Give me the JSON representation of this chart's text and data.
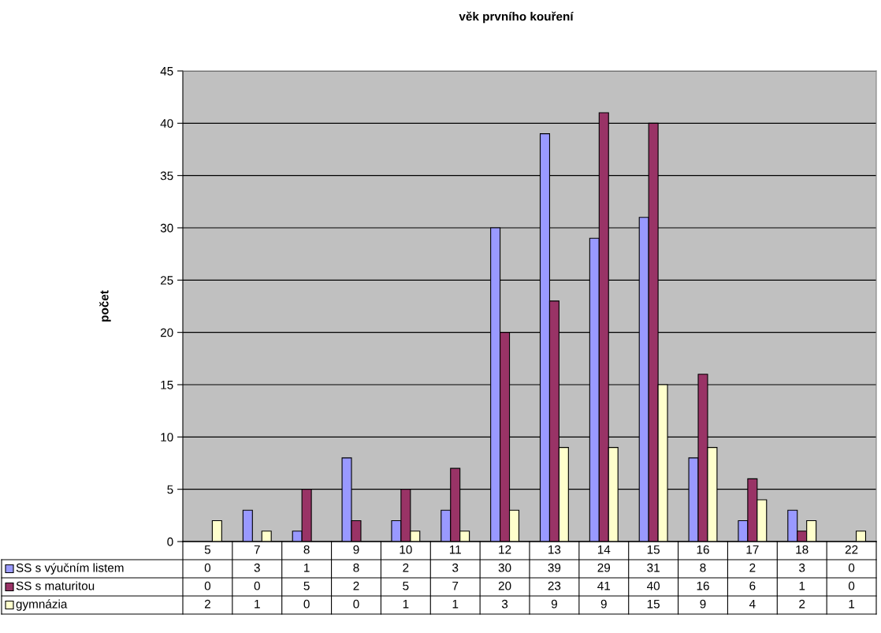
{
  "chart_data": {
    "type": "bar",
    "title": "věk prvního kouření",
    "ylabel": "počet",
    "categories": [
      "5",
      "7",
      "8",
      "9",
      "10",
      "11",
      "12",
      "13",
      "14",
      "15",
      "16",
      "17",
      "18",
      "22"
    ],
    "series": [
      {
        "name": "SS s výučním listem",
        "color": "#9999ff",
        "values": [
          0,
          3,
          1,
          8,
          2,
          3,
          30,
          39,
          29,
          31,
          8,
          2,
          3,
          0
        ]
      },
      {
        "name": "SS s maturitou",
        "color": "#993366",
        "values": [
          0,
          0,
          5,
          2,
          5,
          7,
          20,
          23,
          41,
          40,
          16,
          6,
          1,
          0
        ]
      },
      {
        "name": "gymnázia",
        "color": "#ffffcc",
        "values": [
          2,
          1,
          0,
          0,
          1,
          1,
          3,
          9,
          9,
          15,
          9,
          4,
          2,
          1
        ]
      }
    ],
    "ylim": [
      0,
      45
    ],
    "yticks": [
      0,
      5,
      10,
      15,
      20,
      25,
      30,
      35,
      40,
      45
    ],
    "grid": "y",
    "data_labels": true,
    "legend": "bottom left"
  }
}
